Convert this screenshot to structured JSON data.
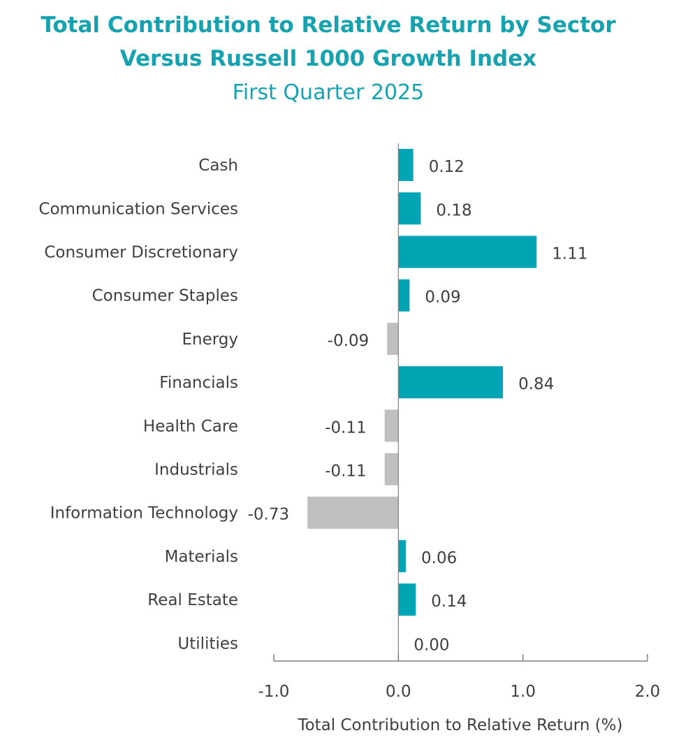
{
  "chart_data": {
    "type": "bar",
    "orientation": "horizontal",
    "title": "Total Contribution to Relative Return by Sector",
    "title_line2": "Versus Russell 1000 Growth Index",
    "subtitle": "First Quarter 2025",
    "categories": [
      "Cash",
      "Communication Services",
      "Consumer Discretionary",
      "Consumer Staples",
      "Energy",
      "Financials",
      "Health Care",
      "Industrials",
      "Information Technology",
      "Materials",
      "Real Estate",
      "Utilities"
    ],
    "values": [
      0.12,
      0.18,
      1.11,
      0.09,
      -0.09,
      0.84,
      -0.11,
      -0.11,
      -0.73,
      0.06,
      0.14,
      0.0
    ],
    "value_labels": [
      "0.12",
      "0.18",
      "1.11",
      "0.09",
      "-0.09",
      "0.84",
      "-0.11",
      "-0.11",
      "-0.73",
      "0.06",
      "0.14",
      "0.00"
    ],
    "xlabel": "Total Contribution to Relative Return (%)",
    "ylabel": "",
    "xlim": [
      -1.0,
      2.0
    ],
    "xticks": [
      -1.0,
      0.0,
      1.0,
      2.0
    ],
    "xtick_labels": [
      "-1.0",
      "0.0",
      "1.0",
      "2.0"
    ],
    "grid": false,
    "colors": {
      "positive": "#00a5b5",
      "negative": "#bfbfbf",
      "title": "#17a2b0",
      "text": "#3f3f3f",
      "axis": "#7f7f7f"
    }
  }
}
